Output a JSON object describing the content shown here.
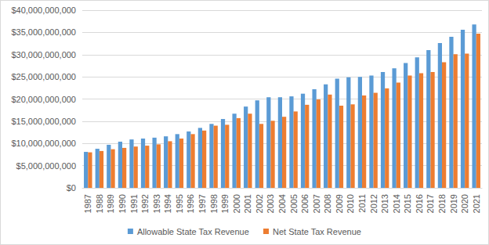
{
  "chart_data": {
    "type": "bar",
    "categories": [
      "1987",
      "1988",
      "1989",
      "1990",
      "1991",
      "1992",
      "1993",
      "1994",
      "1995",
      "1996",
      "1997",
      "1998",
      "1999",
      "2000",
      "2001",
      "2002",
      "2003",
      "2004",
      "2005",
      "2006",
      "2007",
      "2008",
      "2009",
      "2010",
      "2011",
      "2012",
      "2013",
      "2014",
      "2015",
      "2016",
      "2017",
      "2018",
      "2019",
      "2020",
      "2021"
    ],
    "series": [
      {
        "name": "Allowable State Tax Revenue",
        "color": "#5b9bd5",
        "values": [
          8100000000,
          8800000000,
          9700000000,
          10400000000,
          10900000000,
          11100000000,
          11300000000,
          11600000000,
          12100000000,
          12700000000,
          13500000000,
          14400000000,
          15500000000,
          16700000000,
          18300000000,
          19700000000,
          20400000000,
          20400000000,
          20600000000,
          21200000000,
          22200000000,
          23300000000,
          24600000000,
          24900000000,
          25000000000,
          25300000000,
          26100000000,
          26900000000,
          28100000000,
          29400000000,
          31000000000,
          32600000000,
          34000000000,
          35600000000,
          36800000000
        ]
      },
      {
        "name": "Net State Tax Revenue",
        "color": "#ed7d31",
        "values": [
          8000000000,
          8300000000,
          8700000000,
          9000000000,
          9300000000,
          9500000000,
          9800000000,
          10500000000,
          11100000000,
          12100000000,
          12900000000,
          14000000000,
          14200000000,
          15700000000,
          16700000000,
          14400000000,
          15100000000,
          16000000000,
          17200000000,
          18700000000,
          19900000000,
          21000000000,
          18500000000,
          18800000000,
          20800000000,
          21400000000,
          22400000000,
          23700000000,
          25300000000,
          25800000000,
          26100000000,
          28300000000,
          30100000000,
          30200000000,
          34700000000
        ]
      }
    ],
    "ylim": [
      0,
      40000000000
    ],
    "yticks": [
      {
        "value": 0,
        "label": "$0"
      },
      {
        "value": 5000000000,
        "label": "$5,000,000,000"
      },
      {
        "value": 10000000000,
        "label": "$10,000,000,000"
      },
      {
        "value": 15000000000,
        "label": "$15,000,000,000"
      },
      {
        "value": 20000000000,
        "label": "$20,000,000,000"
      },
      {
        "value": 25000000000,
        "label": "$25,000,000,000"
      },
      {
        "value": 30000000000,
        "label": "$30,000,000,000"
      },
      {
        "value": 35000000000,
        "label": "$35,000,000,000"
      },
      {
        "value": 40000000000,
        "label": "$40,000,000,000"
      }
    ],
    "grid": true,
    "legend": "bottom"
  }
}
